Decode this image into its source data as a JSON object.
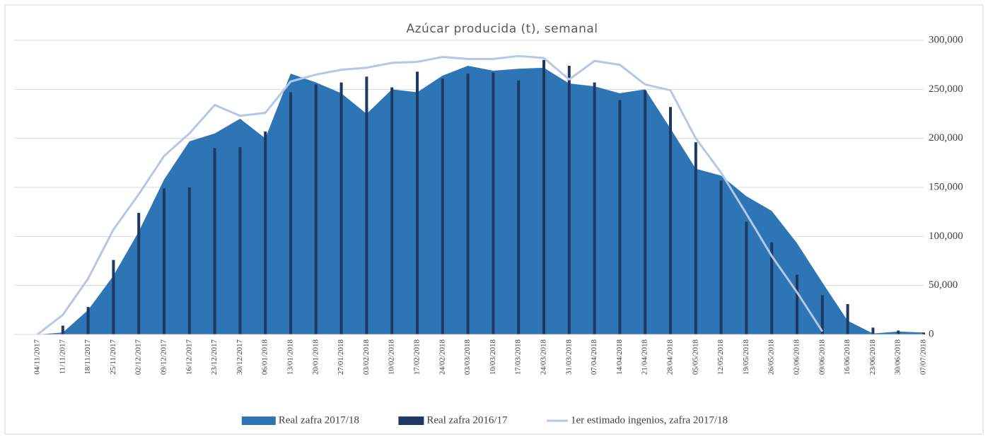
{
  "chart_data": {
    "type": "combo",
    "title": "Azúcar producida (t), semanal",
    "categories": [
      "04/11/2017",
      "11/11/2017",
      "18/11/2017",
      "25/11/2017",
      "02/12/2017",
      "09/12/2017",
      "16/12/2017",
      "23/12/2017",
      "30/12/2017",
      "06/01/2018",
      "13/01/2018",
      "20/01/2018",
      "27/01/2018",
      "03/02/2018",
      "10/02/2018",
      "17/02/2018",
      "24/02/2018",
      "03/03/2018",
      "10/03/2018",
      "17/03/2018",
      "24/03/2018",
      "31/03/2018",
      "07/04/2018",
      "14/04/2018",
      "21/04/2018",
      "28/04/2018",
      "05/05/2018",
      "12/05/2018",
      "19/05/2018",
      "26/05/2018",
      "02/06/2018",
      "09/06/2018",
      "16/06/2018",
      "23/06/2018",
      "30/06/2018",
      "07/07/2018"
    ],
    "series": [
      {
        "name": "Real zafra 2017/18",
        "type": "area",
        "color": "#2e75b6",
        "values": [
          0,
          2000,
          25000,
          60000,
          105000,
          158000,
          197000,
          205000,
          220000,
          200000,
          266000,
          257000,
          246000,
          225000,
          250000,
          247000,
          264000,
          274000,
          269000,
          271000,
          272000,
          256000,
          253000,
          246000,
          250000,
          210000,
          169000,
          162000,
          141000,
          126000,
          93000,
          53000,
          14000,
          1000,
          3000,
          2000
        ]
      },
      {
        "name": "Real zafra 2016/17",
        "type": "bar",
        "color": "#1f3864",
        "values": [
          0,
          9000,
          28000,
          76000,
          124000,
          149000,
          150000,
          190000,
          191000,
          207000,
          247000,
          255000,
          257000,
          263000,
          252000,
          268000,
          261000,
          266000,
          267000,
          259000,
          280000,
          274000,
          257000,
          239000,
          249000,
          232000,
          196000,
          157000,
          115000,
          94000,
          61000,
          40000,
          31000,
          7000,
          4000,
          2000
        ]
      },
      {
        "name": "1er estimado ingenios, zafra 2017/18",
        "type": "line",
        "color": "#b4c7e7",
        "values": [
          0,
          20000,
          57000,
          107000,
          143000,
          182000,
          205000,
          234000,
          223000,
          226000,
          258000,
          265000,
          270000,
          272000,
          277000,
          278000,
          283000,
          281000,
          281000,
          284000,
          282000,
          260000,
          279000,
          275000,
          255000,
          249000,
          200000,
          165000,
          123000,
          80000,
          43000,
          3000,
          null,
          null,
          null,
          null
        ]
      }
    ],
    "ylim": [
      0,
      300000
    ],
    "yticks": [
      0,
      {
        "value": 50000,
        "label": "50,000"
      },
      {
        "value": 100000,
        "label": "100,000"
      },
      {
        "value": 150000,
        "label": "150,000"
      },
      {
        "value": 200000,
        "label": "200,000"
      },
      {
        "value": 250000,
        "label": "250,000"
      },
      {
        "value": 300000,
        "label": "300,000"
      }
    ],
    "grid": true,
    "legend": "bottom"
  }
}
